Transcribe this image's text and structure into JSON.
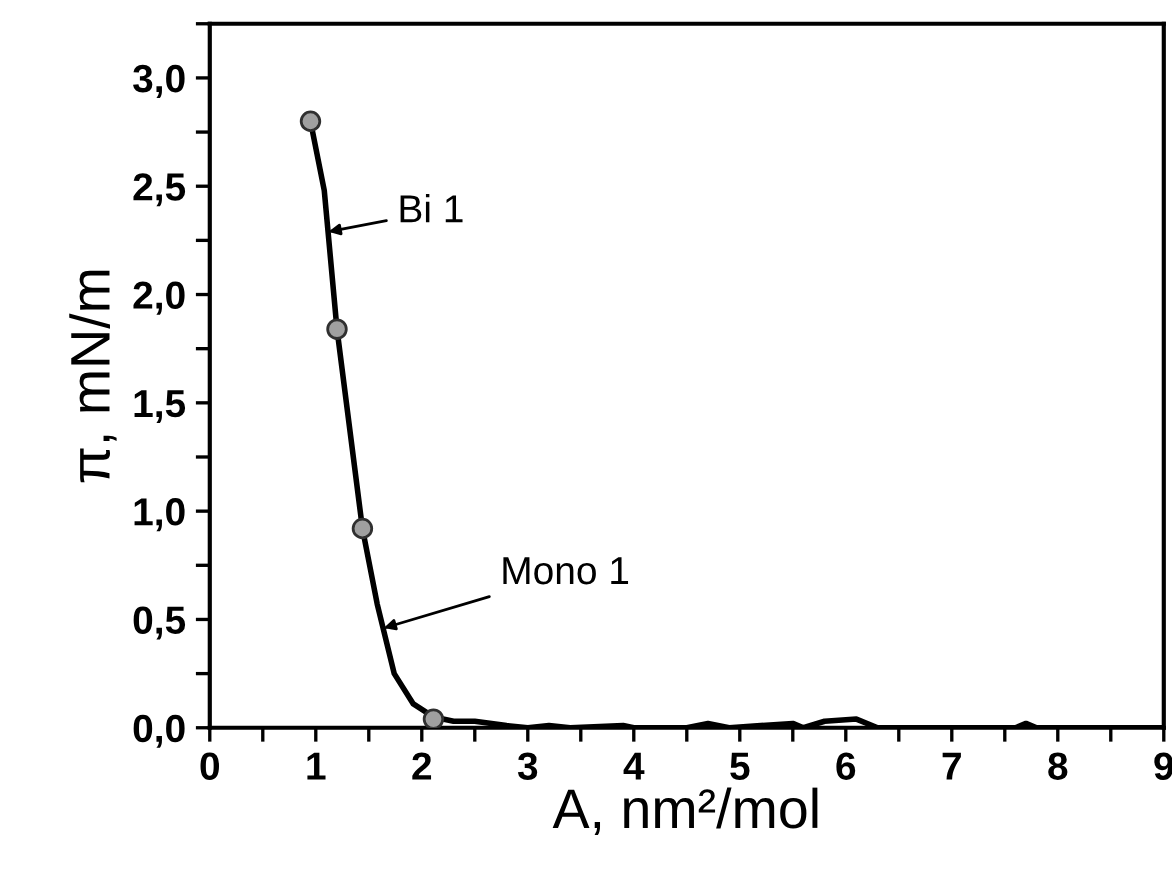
{
  "chart_data": {
    "type": "line",
    "xlabel": "A, nm²/mol",
    "ylabel": "π, mN/m",
    "xlim": [
      0,
      9
    ],
    "ylim": [
      0,
      3.25
    ],
    "xticks": [
      {
        "value": 0,
        "label": "0"
      },
      {
        "value": 0.5,
        "label": null
      },
      {
        "value": 1,
        "label": "1"
      },
      {
        "value": 1.5,
        "label": null
      },
      {
        "value": 2,
        "label": "2"
      },
      {
        "value": 2.5,
        "label": null
      },
      {
        "value": 3,
        "label": "3"
      },
      {
        "value": 3.5,
        "label": null
      },
      {
        "value": 4,
        "label": "4"
      },
      {
        "value": 4.5,
        "label": null
      },
      {
        "value": 5,
        "label": "5"
      },
      {
        "value": 5.5,
        "label": null
      },
      {
        "value": 6,
        "label": "6"
      },
      {
        "value": 6.5,
        "label": null
      },
      {
        "value": 7,
        "label": "7"
      },
      {
        "value": 7.5,
        "label": null
      },
      {
        "value": 8,
        "label": "8"
      },
      {
        "value": 8.5,
        "label": null
      },
      {
        "value": 9,
        "label": "9"
      }
    ],
    "yticks": [
      {
        "value": 0,
        "label": "0,0"
      },
      {
        "value": 0.25,
        "label": null
      },
      {
        "value": 0.5,
        "label": "0,5"
      },
      {
        "value": 0.75,
        "label": null
      },
      {
        "value": 1,
        "label": "1,0"
      },
      {
        "value": 1.25,
        "label": null
      },
      {
        "value": 1.5,
        "label": "1,5"
      },
      {
        "value": 1.75,
        "label": null
      },
      {
        "value": 2,
        "label": "2,0"
      },
      {
        "value": 2.25,
        "label": null
      },
      {
        "value": 2.5,
        "label": "2,5"
      },
      {
        "value": 2.75,
        "label": null
      },
      {
        "value": 3,
        "label": "3,0"
      },
      {
        "value": 3.25,
        "label": null
      }
    ],
    "grid": false,
    "legend": false,
    "line_style": "solid",
    "series": [
      {
        "type": "line",
        "color": "#000000",
        "marker": "none",
        "x": [
          0.95,
          1.08,
          1.2,
          1.44,
          1.58,
          1.74,
          1.92,
          2.11,
          2.3,
          2.5,
          2.8,
          3.0,
          3.2,
          3.4,
          3.9,
          4.0,
          4.5,
          4.7,
          4.9,
          5.5,
          5.6,
          5.8,
          6.1,
          6.3,
          7.6,
          7.7,
          7.8,
          9.0
        ],
        "values": [
          2.8,
          2.48,
          1.84,
          0.92,
          0.57,
          0.25,
          0.11,
          0.05,
          0.03,
          0.03,
          0.01,
          0.0,
          0.01,
          0.0,
          0.01,
          0.0,
          0.0,
          0.02,
          0.0,
          0.02,
          0.0,
          0.03,
          0.04,
          0.0,
          0.0,
          0.02,
          0.0,
          0.0
        ]
      },
      {
        "type": "scatter",
        "color": "#a0a0a0",
        "marker": "circle",
        "x": [
          0.95,
          1.2,
          1.44,
          2.11
        ],
        "values": [
          2.8,
          1.84,
          0.92,
          0.04
        ]
      }
    ],
    "annotations": [
      {
        "text": "Bi 1",
        "x": 1.12,
        "y": 2.29
      },
      {
        "text": "Mono 1",
        "x": 1.64,
        "y": 0.46
      }
    ]
  }
}
